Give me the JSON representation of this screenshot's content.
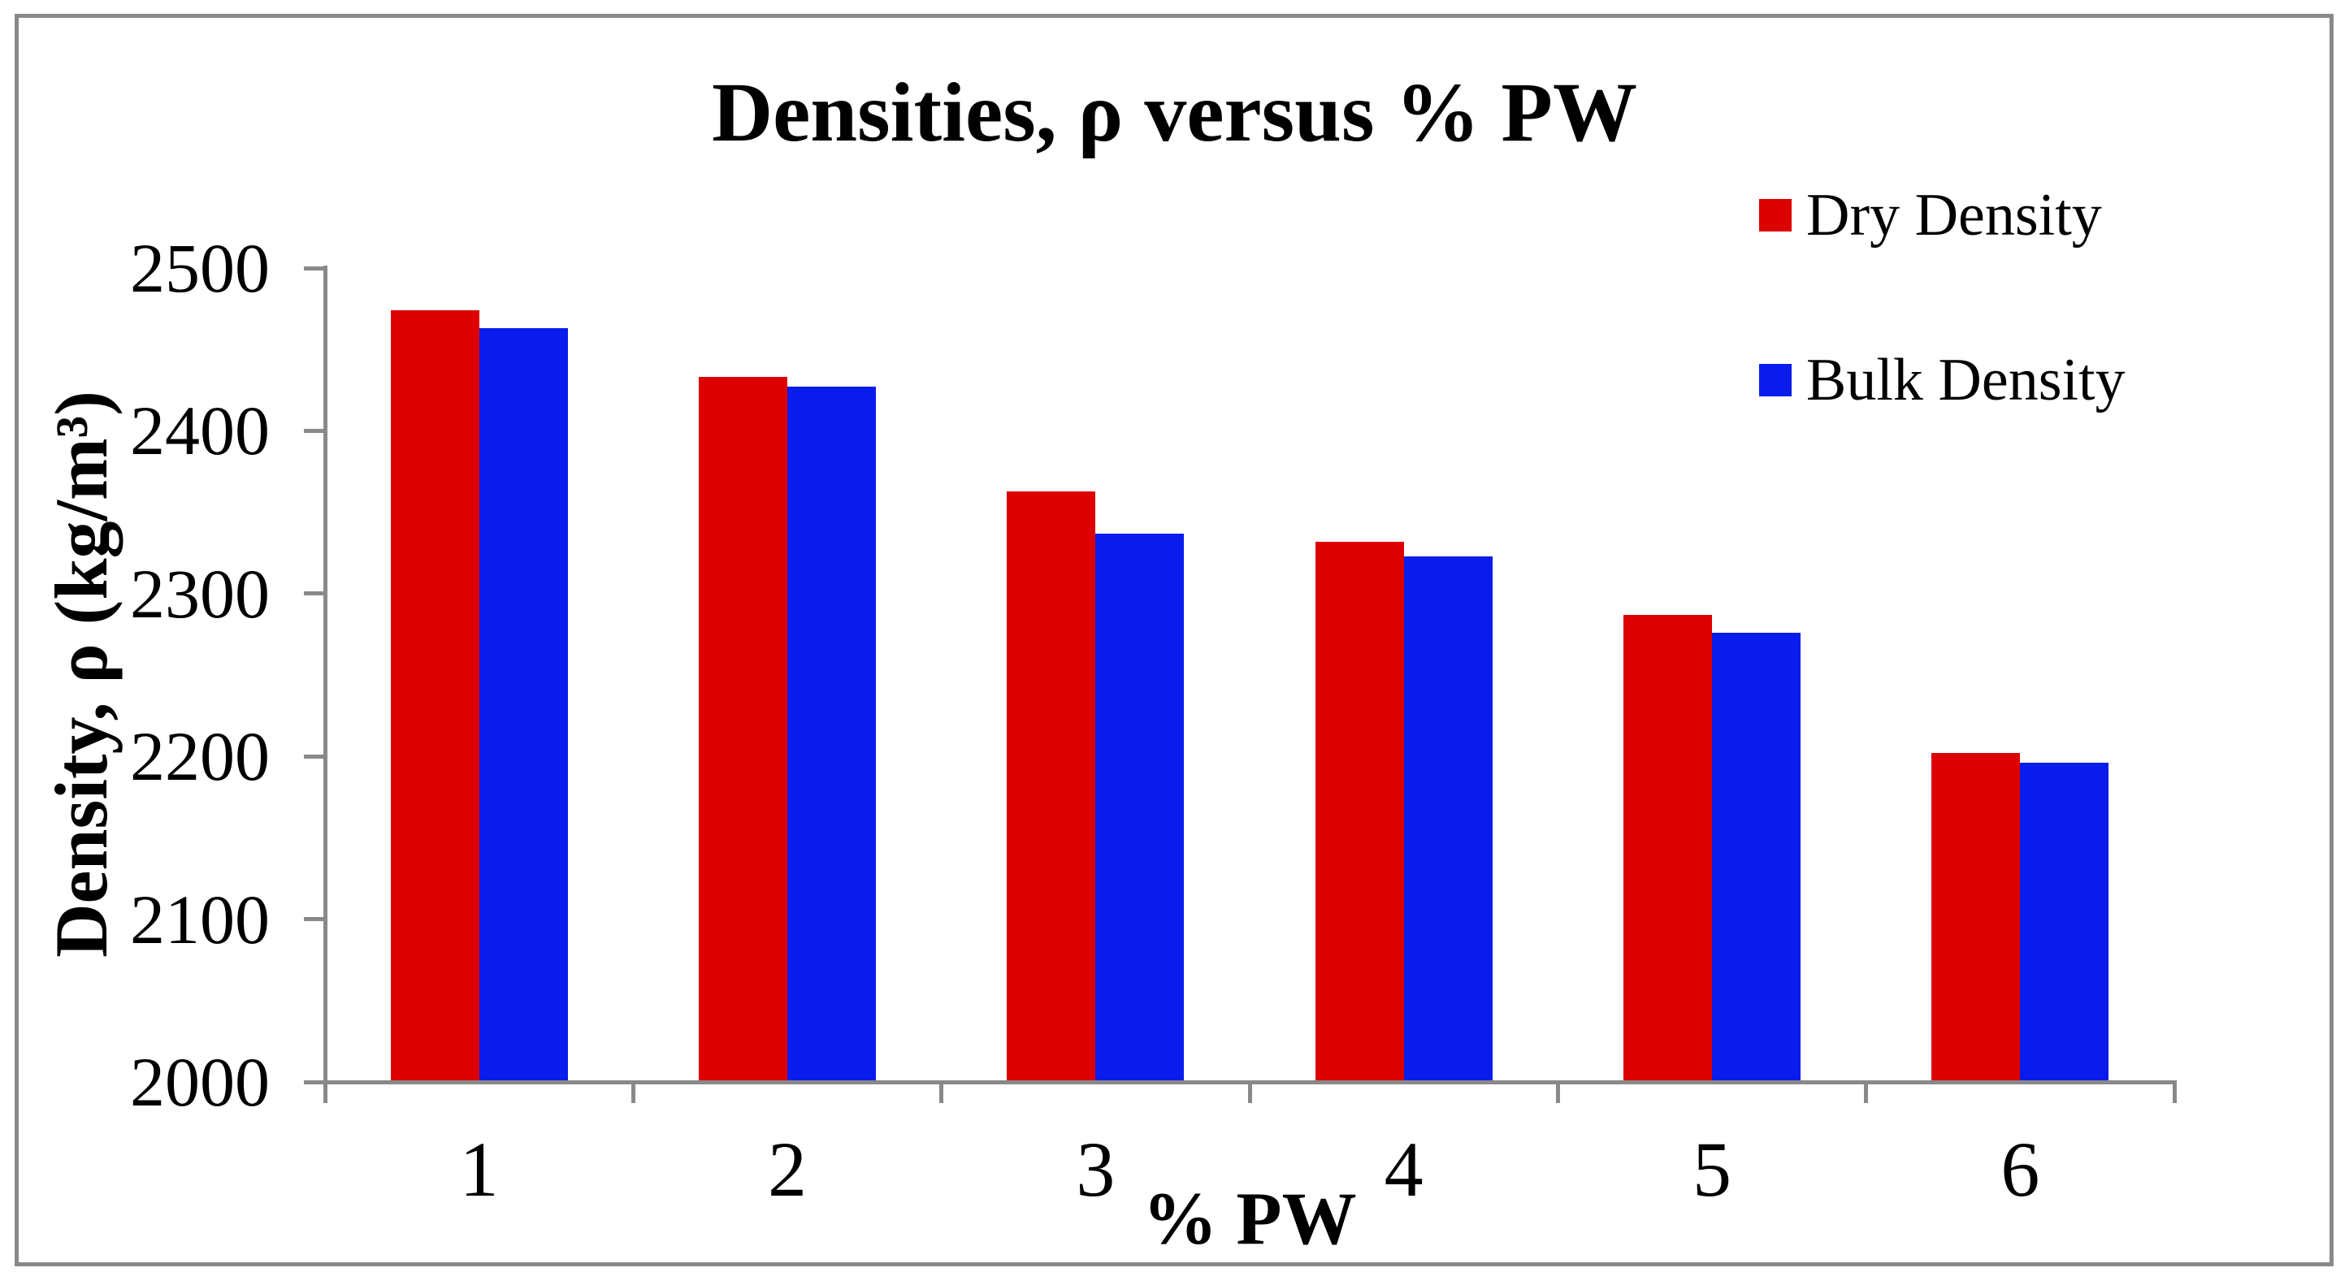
{
  "figure": {
    "background_color": "#ffffff",
    "border_color": "#898989",
    "axis_color": "#898989"
  },
  "chart_data": {
    "type": "bar",
    "title": "Densities, ρ versus % PW",
    "xlabel": "% PW",
    "ylabel": "Density, ρ (kg/m³)",
    "categories": [
      "1",
      "2",
      "3",
      "4",
      "5",
      "6"
    ],
    "series": [
      {
        "name": "Dry Density",
        "color": "#DD0000",
        "values": [
          2474,
          2433,
          2363,
          2332,
          2287,
          2202
        ]
      },
      {
        "name": "Bulk Density",
        "color": "#0A1CEB",
        "values": [
          2463,
          2427,
          2337,
          2323,
          2276,
          2196
        ]
      }
    ],
    "ylim": [
      2000,
      2500
    ],
    "ytick_step": 100,
    "ytick_labels": [
      "2000",
      "2100",
      "2200",
      "2300",
      "2400",
      "2500"
    ],
    "grid": false,
    "legend_position": "top-right"
  }
}
